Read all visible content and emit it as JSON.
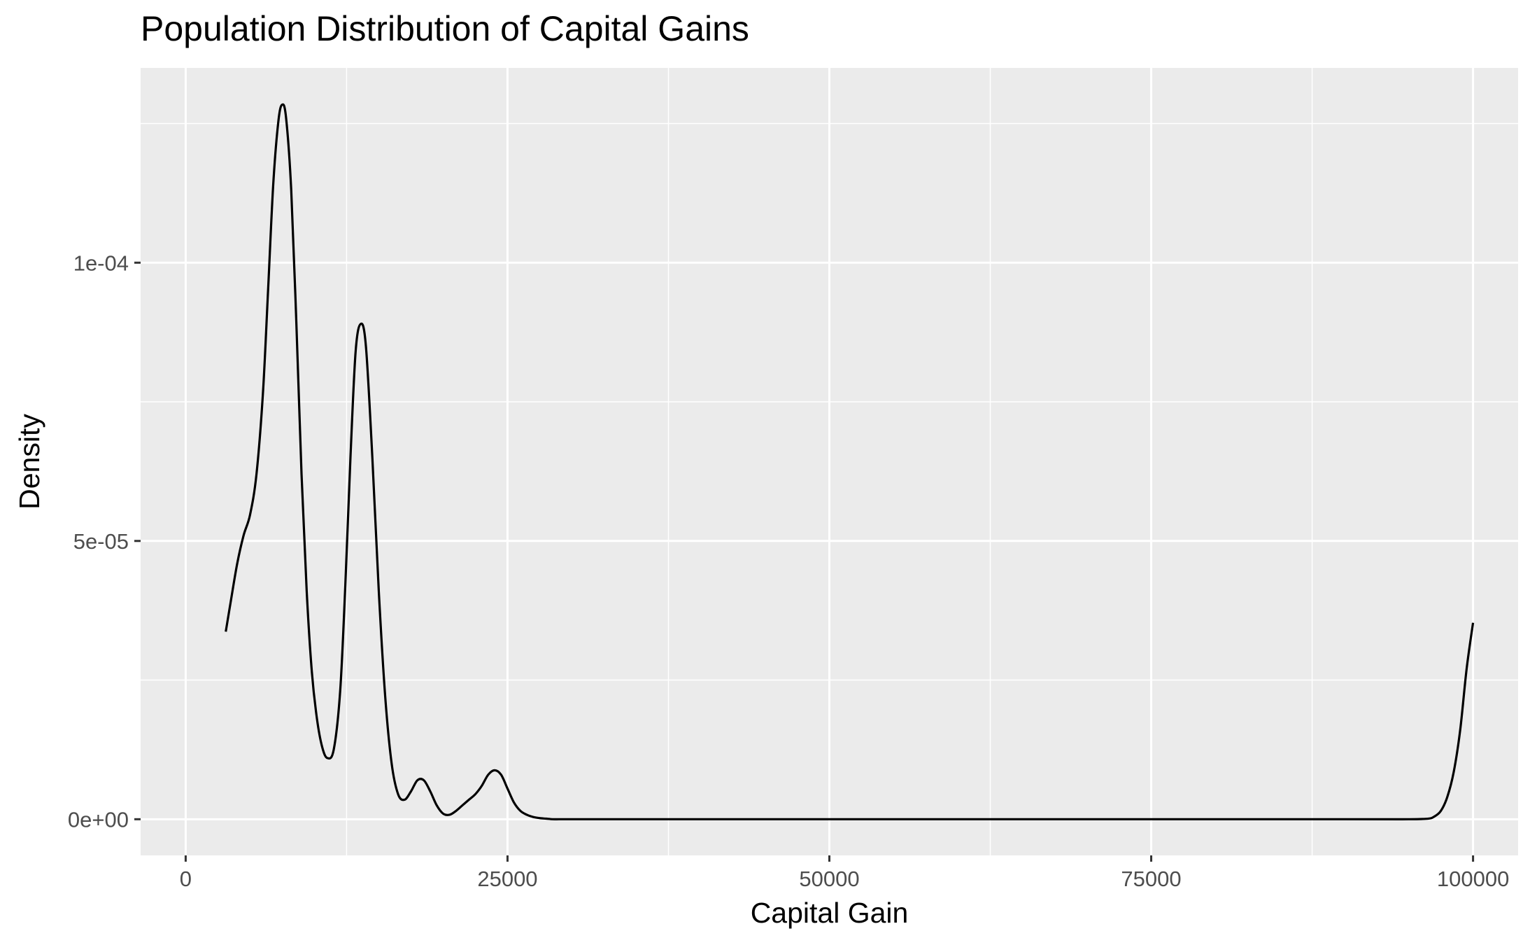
{
  "chart_data": {
    "type": "line",
    "title": "Population Distribution of Capital Gains",
    "xlabel": "Capital Gain",
    "ylabel": "Density",
    "xlim": [
      -3500,
      103500
    ],
    "ylim": [
      -6.5e-06,
      0.000135
    ],
    "x_ticks": [
      0,
      25000,
      50000,
      75000,
      100000
    ],
    "x_tick_labels": [
      "0",
      "25000",
      "50000",
      "75000",
      "100000"
    ],
    "y_ticks": [
      0,
      5e-05,
      0.0001
    ],
    "y_tick_labels": [
      "0e+00",
      "5e-05",
      "1e-04"
    ],
    "x_minor_ticks": [
      12500,
      37500,
      62500,
      87500
    ],
    "y_minor_ticks": [
      2.5e-05,
      7.5e-05,
      0.000125
    ],
    "grid": true,
    "colors": {
      "panel": "#ebebeb",
      "grid": "#ffffff",
      "line": "#000000",
      "tick_text": "#4d4d4d"
    },
    "series": [
      {
        "x": [
          3114,
          3500,
          4000,
          4500,
          5000,
          5500,
          6000,
          6400,
          6800,
          7200,
          7500,
          7800,
          8200,
          8600,
          9000,
          9400,
          9800,
          10200,
          10600,
          11000,
          11500,
          12000,
          12400,
          12800,
          13200,
          13600,
          14000,
          14500,
          15000,
          15500,
          16000,
          16500,
          17000,
          17500,
          18000,
          18500,
          19000,
          19500,
          20000,
          20500,
          21000,
          21500,
          22000,
          22500,
          23000,
          23500,
          24000,
          24500,
          25000,
          25500,
          26000,
          26500,
          27000,
          27500,
          28000,
          28500,
          29000,
          29500,
          30000,
          30500,
          31000,
          32000,
          35000,
          45000,
          60000,
          75000,
          90000,
          95000,
          96500,
          97000,
          97500,
          98000,
          98500,
          99000,
          99500,
          99999
        ],
        "y": [
          3.37e-05,
          3.91e-05,
          4.59e-05,
          5.1e-05,
          5.47e-05,
          6.2e-05,
          7.65e-05,
          9.5e-05,
          0.000114,
          0.0001254,
          0.0001284,
          0.000126,
          0.000113,
          8.9e-05,
          6.2e-05,
          4.1e-05,
          2.65e-05,
          1.8e-05,
          1.3e-05,
          1.1e-05,
          1.25e-05,
          2.3e-05,
          4.2e-05,
          6.5e-05,
          8.4e-05,
          8.9e-05,
          8.5e-05,
          6.5e-05,
          4.1e-05,
          2.2e-05,
          1e-05,
          4.5e-06,
          3.5e-06,
          5e-06,
          7e-06,
          7e-06,
          5e-06,
          2.5e-06,
          1e-06,
          8e-07,
          1.5e-06,
          2.5e-06,
          3.5e-06,
          4.5e-06,
          6e-06,
          8e-06,
          8.8e-06,
          8e-06,
          5.5e-06,
          3e-06,
          1.5e-06,
          8e-07,
          4e-07,
          2e-07,
          1e-07,
          0.0,
          0.0,
          0.0,
          0.0,
          0.0,
          0.0,
          0.0,
          0.0,
          0.0,
          0.0,
          0.0,
          0.0,
          0.0,
          1e-07,
          5e-07,
          1.5e-06,
          4e-06,
          8.5e-06,
          1.6e-05,
          2.7e-05,
          3.53e-05
        ]
      }
    ]
  }
}
